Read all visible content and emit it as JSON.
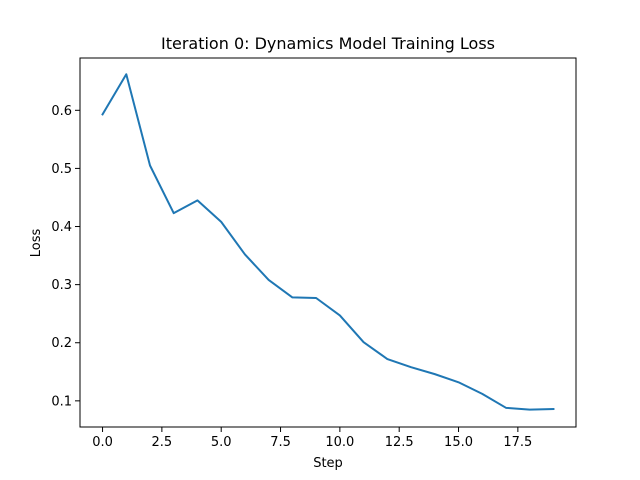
{
  "chart_data": {
    "type": "line",
    "title": "Iteration 0: Dynamics Model Training Loss",
    "xlabel": "Step",
    "ylabel": "Loss",
    "xlim": [
      -0.95,
      19.95
    ],
    "ylim": [
      0.055,
      0.69
    ],
    "grid": false,
    "legend": "none",
    "x_ticks": [
      0.0,
      2.5,
      5.0,
      7.5,
      10.0,
      12.5,
      15.0,
      17.5
    ],
    "x_tick_labels": [
      "0.0",
      "2.5",
      "5.0",
      "7.5",
      "10.0",
      "12.5",
      "15.0",
      "17.5"
    ],
    "y_ticks": [
      0.1,
      0.2,
      0.3,
      0.4,
      0.5,
      0.6
    ],
    "y_tick_labels": [
      "0.1",
      "0.2",
      "0.3",
      "0.4",
      "0.5",
      "0.6"
    ],
    "series": [
      {
        "name": "loss",
        "color": "#1f77b4",
        "x": [
          0,
          1,
          2,
          3,
          4,
          5,
          6,
          7,
          8,
          9,
          10,
          11,
          12,
          13,
          14,
          15,
          16,
          17,
          18,
          19
        ],
        "values": [
          0.593,
          0.662,
          0.505,
          0.423,
          0.445,
          0.408,
          0.352,
          0.308,
          0.278,
          0.277,
          0.247,
          0.201,
          0.172,
          0.158,
          0.146,
          0.132,
          0.112,
          0.088,
          0.085,
          0.086
        ]
      }
    ]
  }
}
